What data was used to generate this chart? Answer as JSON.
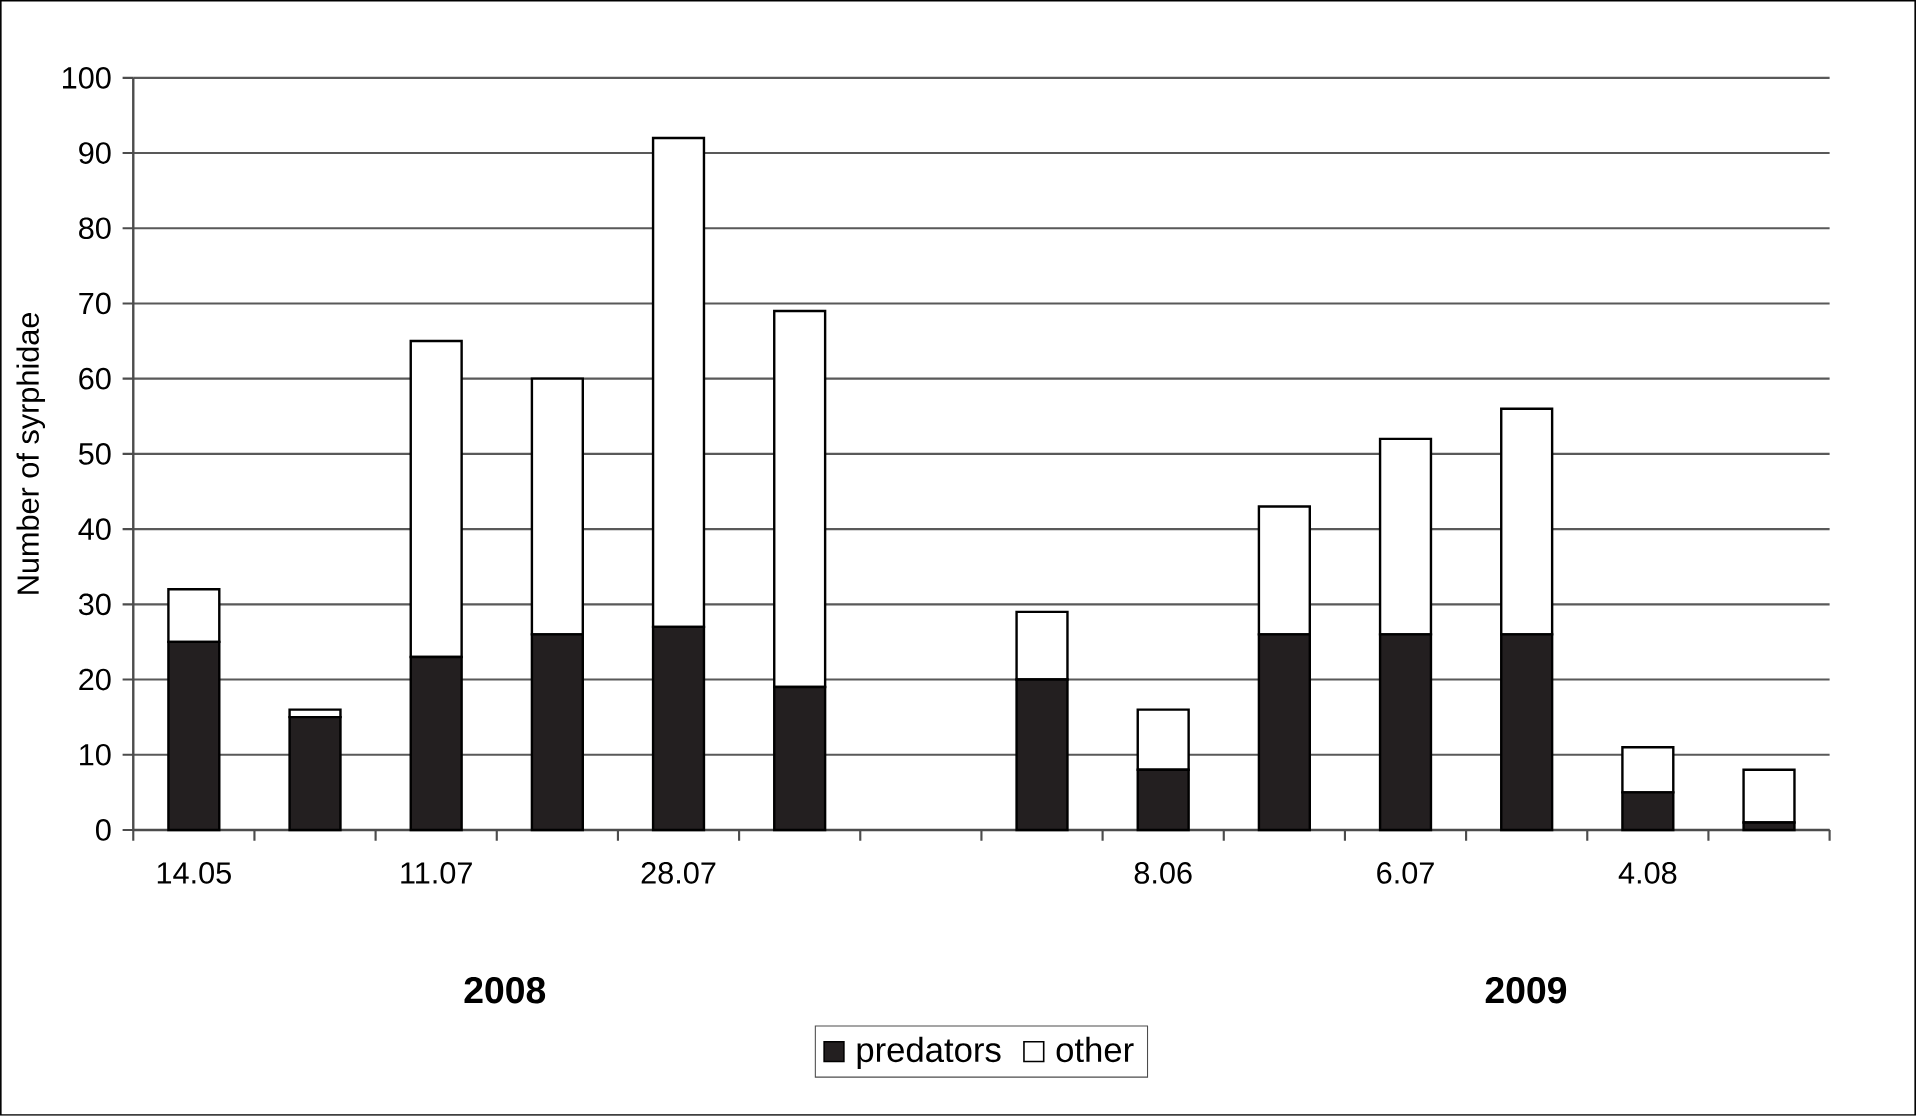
{
  "chart_data": {
    "type": "bar",
    "stacked": true,
    "ylabel": "Number of syrphidae",
    "categories": [
      "14.05",
      null,
      "11.07",
      null,
      "28.07",
      null,
      null,
      null,
      "8.06",
      null,
      "6.07",
      null,
      "4.08",
      null
    ],
    "series": [
      {
        "name": "predators",
        "color": "#231f20",
        "values": [
          25,
          15,
          23,
          26,
          27,
          19,
          null,
          20,
          8,
          26,
          26,
          26,
          5,
          1
        ]
      },
      {
        "name": "other",
        "color": "#ffffff",
        "values": [
          7,
          1,
          42,
          34,
          65,
          50,
          null,
          9,
          8,
          17,
          26,
          30,
          6,
          7
        ]
      }
    ],
    "ylim": [
      0,
      100
    ],
    "yticks": [
      0,
      10,
      20,
      30,
      40,
      50,
      60,
      70,
      80,
      90,
      100
    ],
    "grid": "y",
    "legend": "bottom",
    "annotations": [
      "2008",
      "2009"
    ]
  }
}
